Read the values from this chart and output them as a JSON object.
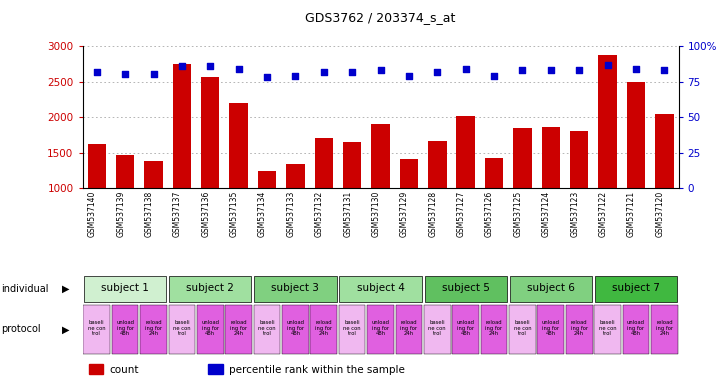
{
  "title": "GDS3762 / 203374_s_at",
  "samples": [
    "GSM537140",
    "GSM537139",
    "GSM537138",
    "GSM537137",
    "GSM537136",
    "GSM537135",
    "GSM537134",
    "GSM537133",
    "GSM537132",
    "GSM537131",
    "GSM537130",
    "GSM537129",
    "GSM537128",
    "GSM537127",
    "GSM537126",
    "GSM537125",
    "GSM537124",
    "GSM537123",
    "GSM537122",
    "GSM537121",
    "GSM537120"
  ],
  "counts": [
    1620,
    1460,
    1380,
    2750,
    2560,
    2200,
    1240,
    1340,
    1700,
    1650,
    1900,
    1410,
    1670,
    2020,
    1420,
    1840,
    1860,
    1810,
    2870,
    2500,
    2040
  ],
  "percentile_ranks": [
    82,
    80,
    80,
    86,
    86,
    84,
    78,
    79,
    82,
    82,
    83,
    79,
    82,
    84,
    79,
    83,
    83,
    83,
    87,
    84,
    83
  ],
  "ylim_left": [
    1000,
    3000
  ],
  "ylim_right": [
    0,
    100
  ],
  "subjects": [
    {
      "label": "subject 1",
      "start": 0,
      "end": 3,
      "color": "#d0f0d0"
    },
    {
      "label": "subject 2",
      "start": 3,
      "end": 6,
      "color": "#a0e0a0"
    },
    {
      "label": "subject 3",
      "start": 6,
      "end": 9,
      "color": "#80d080"
    },
    {
      "label": "subject 4",
      "start": 9,
      "end": 12,
      "color": "#a0e0a0"
    },
    {
      "label": "subject 5",
      "start": 12,
      "end": 15,
      "color": "#60c060"
    },
    {
      "label": "subject 6",
      "start": 15,
      "end": 18,
      "color": "#80d080"
    },
    {
      "label": "subject 7",
      "start": 18,
      "end": 21,
      "color": "#40b840"
    }
  ],
  "bar_color": "#cc0000",
  "dot_color": "#0000cc",
  "grid_color": "#aaaaaa",
  "tick_color_left": "#cc0000",
  "tick_color_right": "#0000cc",
  "left_yticks": [
    1000,
    1500,
    2000,
    2500,
    3000
  ],
  "right_yticks": [
    0,
    25,
    50,
    75,
    100
  ],
  "right_ytick_labels": [
    "0",
    "25",
    "50",
    "75",
    "100%"
  ],
  "prot_baseline_color": "#f0b8f0",
  "prot_unload_color": "#e060e0",
  "prot_reload_color": "#e060e0",
  "xtick_bg_color": "#d8d8d8",
  "legend_count_color": "#cc0000",
  "legend_dot_color": "#0000cc"
}
